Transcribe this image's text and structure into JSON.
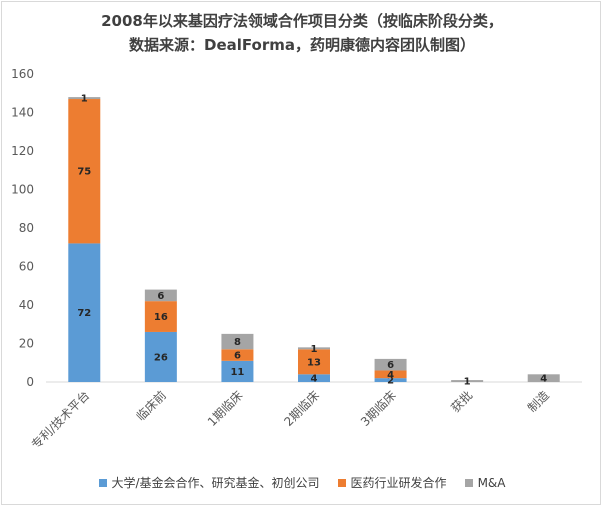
{
  "title": {
    "line1": "2008年以来基因疗法领域合作项目分类（按临床阶段分类，",
    "line2": "数据来源：DealForma，药明康德内容团队制图）"
  },
  "chart_data": {
    "type": "bar",
    "stacked": true,
    "categories": [
      "专利/技术平台",
      "临床前",
      "1期临床",
      "2期临床",
      "3期临床",
      "获批",
      "制造"
    ],
    "series": [
      {
        "name": "大学/基金会合作、研究基金、初创公司",
        "color": "#5b9bd5",
        "values": [
          72,
          26,
          11,
          4,
          2,
          0,
          0
        ]
      },
      {
        "name": "医药行业研发合作",
        "color": "#ed7d31",
        "values": [
          75,
          16,
          6,
          13,
          4,
          0,
          0
        ]
      },
      {
        "name": "M&A",
        "color": "#a5a5a5",
        "values": [
          1,
          6,
          8,
          1,
          6,
          1,
          4
        ]
      }
    ],
    "yticks": [
      0,
      20,
      40,
      60,
      80,
      100,
      120,
      140,
      160
    ],
    "ylim": [
      0,
      160
    ],
    "grid": false,
    "legend_position": "bottom"
  }
}
